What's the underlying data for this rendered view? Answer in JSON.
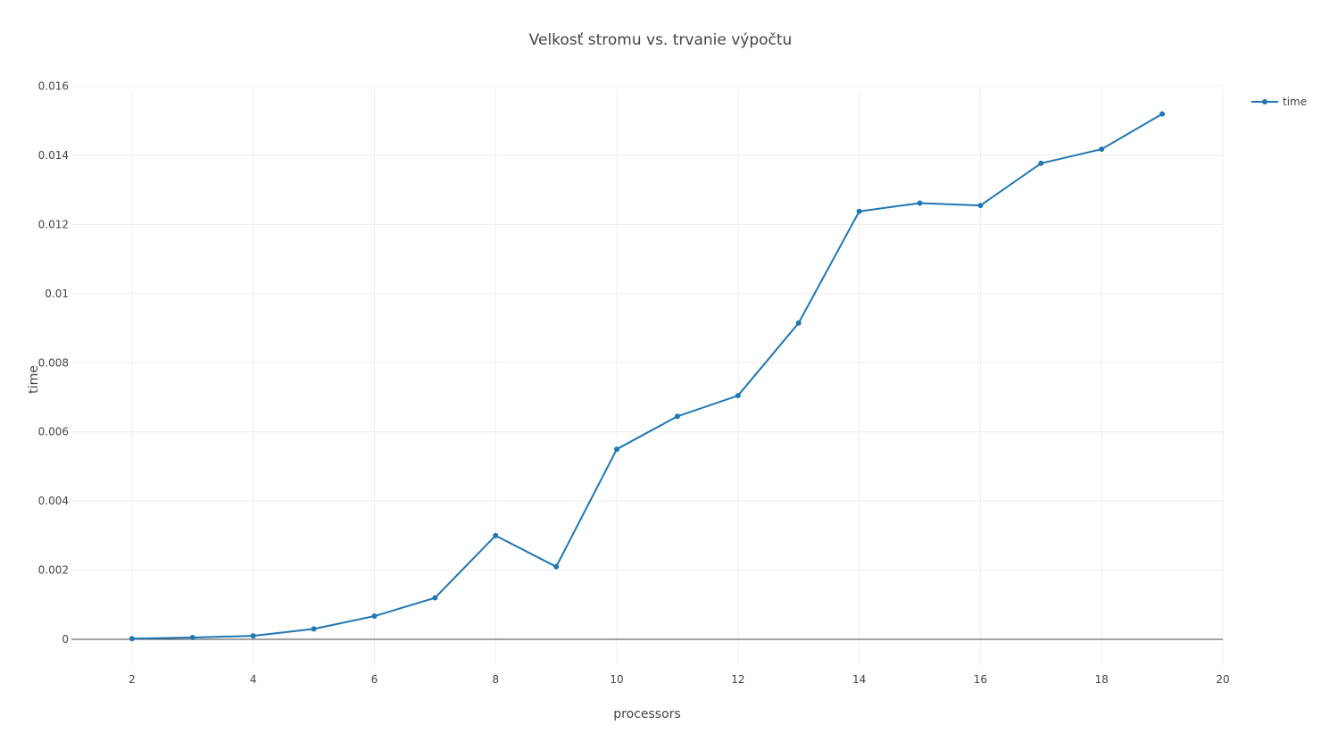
{
  "chart_data": {
    "type": "line",
    "title": "Velkosť stromu vs. trvanie výpočtu",
    "xlabel": "processors",
    "ylabel": "time",
    "xlim": [
      1,
      20
    ],
    "ylim": [
      -0.00075,
      0.0163
    ],
    "x_ticks": [
      2,
      4,
      6,
      8,
      10,
      12,
      14,
      16,
      18,
      20
    ],
    "x_tick_labels": [
      "2",
      "4",
      "6",
      "8",
      "10",
      "12",
      "14",
      "16",
      "18",
      "20"
    ],
    "y_ticks": [
      0,
      0.002,
      0.004,
      0.006,
      0.008,
      0.01,
      0.012,
      0.014,
      0.016
    ],
    "y_tick_labels": [
      "0",
      "0.002",
      "0.004",
      "0.006",
      "0.008",
      "0.01",
      "0.012",
      "0.014",
      "0.016"
    ],
    "grid": true,
    "legend_position": "top-right",
    "series": [
      {
        "name": "time",
        "color": "#1f77b4",
        "x": [
          2,
          3,
          4,
          5,
          6,
          7,
          8,
          9,
          10,
          11,
          12,
          13,
          14,
          15,
          16,
          17,
          18,
          19
        ],
        "y": [
          2e-05,
          5e-05,
          0.0001,
          0.0003,
          0.00067,
          0.0012,
          0.003,
          0.0021,
          0.0055,
          0.00645,
          0.00705,
          0.00915,
          0.01238,
          0.01262,
          0.01255,
          0.01377,
          0.01418,
          0.0152
        ]
      }
    ]
  }
}
